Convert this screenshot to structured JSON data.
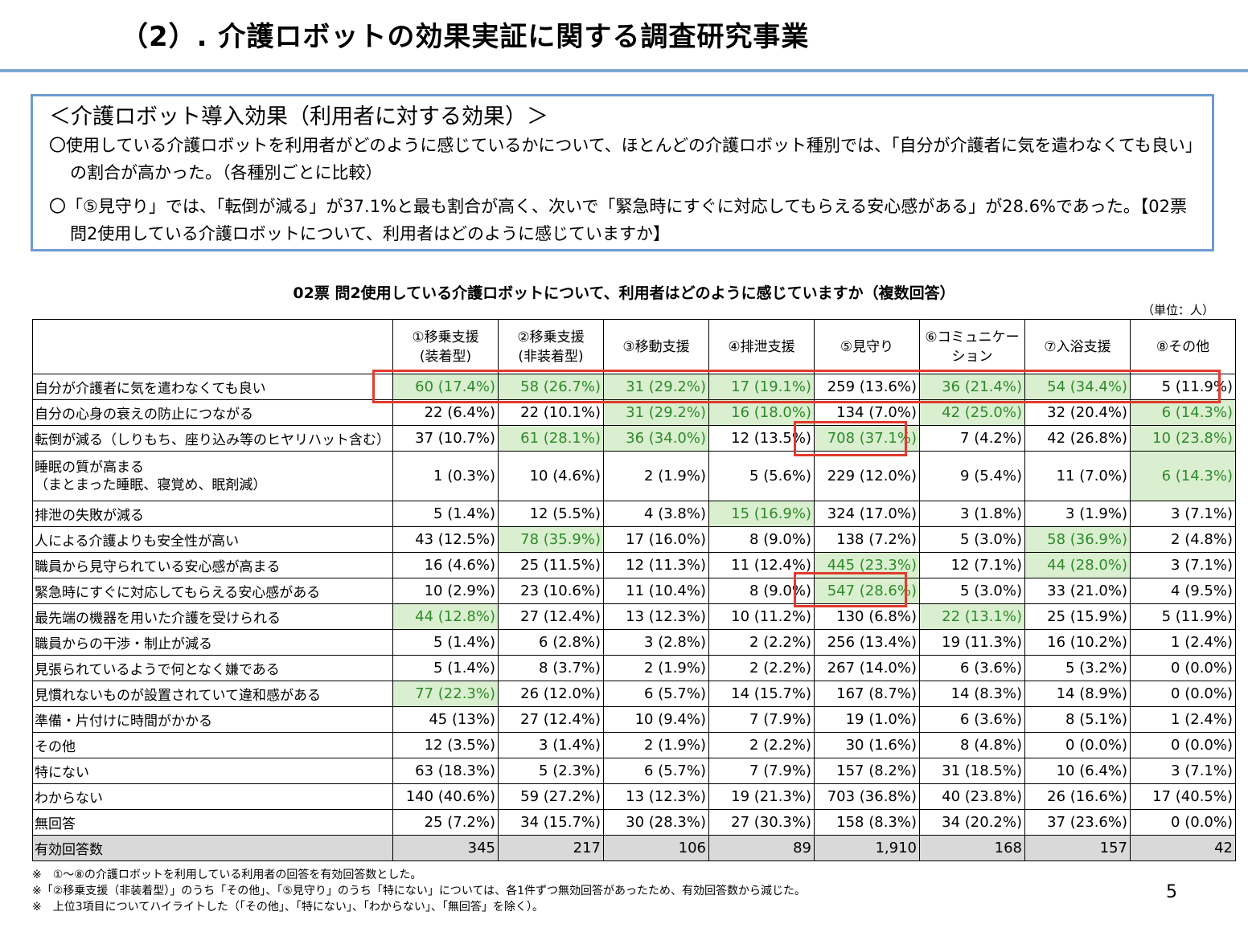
{
  "page": {
    "title": "（2）. 介護ロボットの効果実証に関する調査研究事業",
    "page_number": "5"
  },
  "summary": {
    "heading": "＜介護ロボット導入効果（利用者に対する効果）＞",
    "point1": "〇使用している介護ロボットを利用者がどのように感じているかについて、ほとんどの介護ロボット種別では、「自分が介護者に気を遣わなくても良い」の割合が高かった。（各種別ごとに比較）",
    "point2": "〇「⑤見守り」では、「転倒が減る」が37.1%と最も割合が高く、次いで「緊急時にすぐに対応してもらえる安心感がある」が28.6%であった。【02票 問2使用している介護ロボットについて、利用者はどのように感じていますか】"
  },
  "table": {
    "caption": "02票 問2使用している介護ロボットについて、利用者はどのように感じていますか（複数回答）",
    "unit": "（単位：人）",
    "headers": [
      [
        "①移乗支援",
        "(装着型)"
      ],
      [
        "②移乗支援",
        "(非装着型)"
      ],
      [
        "③移動支援"
      ],
      [
        "④排泄支援"
      ],
      [
        "⑤見守り"
      ],
      [
        "⑥コミュニケー",
        "ション"
      ],
      [
        "⑦入浴支援"
      ],
      [
        "⑧その他"
      ]
    ],
    "highlight_color": "#d9efcf",
    "highlight_text_color": "#2e8a2a",
    "emphasis_box_color": "#e23a2e",
    "rows": [
      {
        "label": "自分が介護者に気を遣わなくても良い",
        "cells": [
          "60 (17.4%)",
          "58 (26.7%)",
          "31 (29.2%)",
          "17 (19.1%)",
          "259 (13.6%)",
          "36 (21.4%)",
          "54 (34.4%)",
          "5 (11.9%)"
        ],
        "highlight": [
          true,
          true,
          true,
          true,
          false,
          true,
          true,
          false
        ]
      },
      {
        "label": "自分の心身の衰えの防止につながる",
        "cells": [
          "22 (6.4%)",
          "22 (10.1%)",
          "31 (29.2%)",
          "16 (18.0%)",
          "134 (7.0%)",
          "42 (25.0%)",
          "32 (20.4%)",
          "6 (14.3%)"
        ],
        "highlight": [
          false,
          false,
          true,
          true,
          false,
          true,
          false,
          true
        ]
      },
      {
        "label": "転倒が減る（しりもち、座り込み等のヒヤリハット含む）",
        "cells": [
          "37 (10.7%)",
          "61 (28.1%)",
          "36 (34.0%)",
          "12 (13.5%)",
          "708 (37.1%)",
          "7 (4.2%)",
          "42 (26.8%)",
          "10 (23.8%)"
        ],
        "highlight": [
          false,
          true,
          true,
          false,
          true,
          false,
          false,
          true
        ]
      },
      {
        "label": "睡眠の質が高まる",
        "label2": "（まとまった睡眠、寝覚め、眠剤減）",
        "cells": [
          "1 (0.3%)",
          "10 (4.6%)",
          "2 (1.9%)",
          "5 (5.6%)",
          "229 (12.0%)",
          "9 (5.4%)",
          "11 (7.0%)",
          "6 (14.3%)"
        ],
        "highlight": [
          false,
          false,
          false,
          false,
          false,
          false,
          false,
          true
        ]
      },
      {
        "label": "排泄の失敗が減る",
        "cells": [
          "5 (1.4%)",
          "12 (5.5%)",
          "4 (3.8%)",
          "15 (16.9%)",
          "324 (17.0%)",
          "3 (1.8%)",
          "3 (1.9%)",
          "3 (7.1%)"
        ],
        "highlight": [
          false,
          false,
          false,
          true,
          false,
          false,
          false,
          false
        ]
      },
      {
        "label": "人による介護よりも安全性が高い",
        "cells": [
          "43 (12.5%)",
          "78 (35.9%)",
          "17 (16.0%)",
          "8 (9.0%)",
          "138 (7.2%)",
          "5 (3.0%)",
          "58 (36.9%)",
          "2 (4.8%)"
        ],
        "highlight": [
          false,
          true,
          false,
          false,
          false,
          false,
          true,
          false
        ]
      },
      {
        "label": "職員から見守られている安心感が高まる",
        "cells": [
          "16 (4.6%)",
          "25 (11.5%)",
          "12 (11.3%)",
          "11 (12.4%)",
          "445 (23.3%)",
          "12 (7.1%)",
          "44 (28.0%)",
          "3 (7.1%)"
        ],
        "highlight": [
          false,
          false,
          false,
          false,
          true,
          false,
          true,
          false
        ]
      },
      {
        "label": "緊急時にすぐに対応してもらえる安心感がある",
        "cells": [
          "10 (2.9%)",
          "23 (10.6%)",
          "11 (10.4%)",
          "8 (9.0%)",
          "547 (28.6%)",
          "5 (3.0%)",
          "33 (21.0%)",
          "4 (9.5%)"
        ],
        "highlight": [
          false,
          false,
          false,
          false,
          true,
          false,
          false,
          false
        ]
      },
      {
        "label": "最先端の機器を用いた介護を受けられる",
        "cells": [
          "44 (12.8%)",
          "27 (12.4%)",
          "13 (12.3%)",
          "10 (11.2%)",
          "130 (6.8%)",
          "22 (13.1%)",
          "25 (15.9%)",
          "5 (11.9%)"
        ],
        "highlight": [
          true,
          false,
          false,
          false,
          false,
          true,
          false,
          false
        ]
      },
      {
        "label": "職員からの干渉・制止が減る",
        "cells": [
          "5 (1.4%)",
          "6 (2.8%)",
          "3 (2.8%)",
          "2 (2.2%)",
          "256 (13.4%)",
          "19 (11.3%)",
          "16 (10.2%)",
          "1 (2.4%)"
        ],
        "highlight": [
          false,
          false,
          false,
          false,
          false,
          false,
          false,
          false
        ]
      },
      {
        "label": "見張られているようで何となく嫌である",
        "cells": [
          "5 (1.4%)",
          "8 (3.7%)",
          "2 (1.9%)",
          "2 (2.2%)",
          "267 (14.0%)",
          "6 (3.6%)",
          "5 (3.2%)",
          "0 (0.0%)"
        ],
        "highlight": [
          false,
          false,
          false,
          false,
          false,
          false,
          false,
          false
        ]
      },
      {
        "label": "見慣れないものが設置されていて違和感がある",
        "cells": [
          "77 (22.3%)",
          "26 (12.0%)",
          "6 (5.7%)",
          "14 (15.7%)",
          "167 (8.7%)",
          "14 (8.3%)",
          "14 (8.9%)",
          "0 (0.0%)"
        ],
        "highlight": [
          true,
          false,
          false,
          false,
          false,
          false,
          false,
          false
        ]
      },
      {
        "label": "準備・片付けに時間がかかる",
        "cells": [
          "45 (13%)",
          "27 (12.4%)",
          "10 (9.4%)",
          "7 (7.9%)",
          "19 (1.0%)",
          "6 (3.6%)",
          "8 (5.1%)",
          "1 (2.4%)"
        ],
        "highlight": [
          false,
          false,
          false,
          false,
          false,
          false,
          false,
          false
        ]
      },
      {
        "label": "その他",
        "cells": [
          "12 (3.5%)",
          "3 (1.4%)",
          "2 (1.9%)",
          "2 (2.2%)",
          "30 (1.6%)",
          "8 (4.8%)",
          "0 (0.0%)",
          "0 (0.0%)"
        ],
        "highlight": [
          false,
          false,
          false,
          false,
          false,
          false,
          false,
          false
        ]
      },
      {
        "label": "特にない",
        "cells": [
          "63 (18.3%)",
          "5 (2.3%)",
          "6 (5.7%)",
          "7 (7.9%)",
          "157 (8.2%)",
          "31 (18.5%)",
          "10 (6.4%)",
          "3 (7.1%)"
        ],
        "highlight": [
          false,
          false,
          false,
          false,
          false,
          false,
          false,
          false
        ]
      },
      {
        "label": "わからない",
        "cells": [
          "140 (40.6%)",
          "59 (27.2%)",
          "13 (12.3%)",
          "19 (21.3%)",
          "703 (36.8%)",
          "40 (23.8%)",
          "26 (16.6%)",
          "17 (40.5%)"
        ],
        "highlight": [
          false,
          false,
          false,
          false,
          false,
          false,
          false,
          false
        ]
      },
      {
        "label": "無回答",
        "cells": [
          "25 (7.2%)",
          "34 (15.7%)",
          "30 (28.3%)",
          "27 (30.3%)",
          "158 (8.3%)",
          "34 (20.2%)",
          "37 (23.6%)",
          "0 (0.0%)"
        ],
        "highlight": [
          false,
          false,
          false,
          false,
          false,
          false,
          false,
          false
        ]
      }
    ],
    "total": {
      "label": "有効回答数",
      "cells": [
        "345",
        "217",
        "106",
        "89",
        "1,910",
        "168",
        "157",
        "42"
      ]
    }
  },
  "notes": [
    "※　①～⑧の介護ロボットを利用している利用者の回答を有効回答数とした。",
    "※「②移乗支援（非装着型）」のうち「その他」、「⑤見守り」のうち「特にない」については、各1件ずつ無効回答があったため、有効回答数から減じた。",
    "※　上位3項目についてハイライトした（「その他」、「特にない」、「わからない」、「無回答」を除く）。"
  ]
}
